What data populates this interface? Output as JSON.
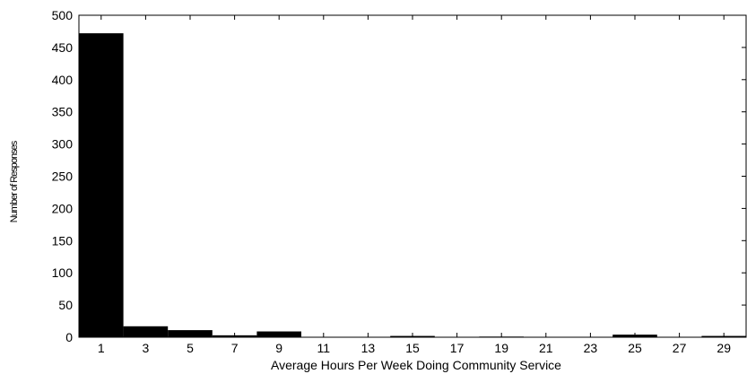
{
  "chart_data": {
    "type": "bar",
    "title": "",
    "xlabel": "Average Hours Per Week Doing Community Service",
    "ylabel": "Number of Responses",
    "ylim": [
      0,
      500
    ],
    "yticks": [
      0,
      50,
      100,
      150,
      200,
      250,
      300,
      350,
      400,
      450,
      500
    ],
    "xlim": [
      0,
      30
    ],
    "xticks": [
      1,
      3,
      5,
      7,
      9,
      11,
      13,
      15,
      17,
      19,
      21,
      23,
      25,
      27,
      29
    ],
    "bin_width": 2,
    "grid": false,
    "legend": "none",
    "bar_color": "#000000",
    "bins": [
      {
        "center": 1,
        "value": 472
      },
      {
        "center": 3,
        "value": 17
      },
      {
        "center": 5,
        "value": 11
      },
      {
        "center": 7,
        "value": 3
      },
      {
        "center": 9,
        "value": 9
      },
      {
        "center": 11,
        "value": 0
      },
      {
        "center": 13,
        "value": 0
      },
      {
        "center": 15,
        "value": 2
      },
      {
        "center": 17,
        "value": 0
      },
      {
        "center": 19,
        "value": 1
      },
      {
        "center": 21,
        "value": 0
      },
      {
        "center": 23,
        "value": 0
      },
      {
        "center": 25,
        "value": 4
      },
      {
        "center": 27,
        "value": 0
      },
      {
        "center": 29,
        "value": 2
      }
    ]
  }
}
